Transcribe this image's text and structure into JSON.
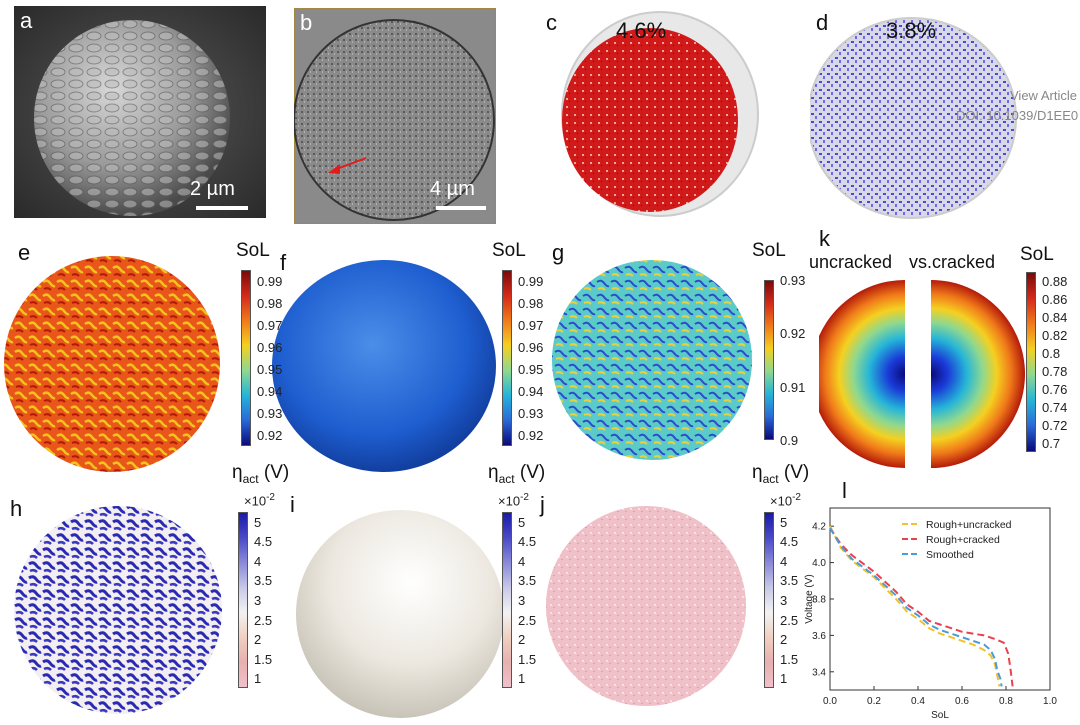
{
  "panels": {
    "a": {
      "label": "a",
      "scale_bar": "2 µm"
    },
    "b": {
      "label": "b",
      "scale_bar": "4 µm"
    },
    "c": {
      "label": "c",
      "percent": "4.6%"
    },
    "d": {
      "label": "d",
      "percent": "3.8%",
      "watermark_1": "View Article",
      "watermark_2": "DOI: 10.1039/D1EE0"
    },
    "e": {
      "label": "e"
    },
    "f": {
      "label": "f"
    },
    "g": {
      "label": "g"
    },
    "h": {
      "label": "h"
    },
    "i": {
      "label": "i"
    },
    "j": {
      "label": "j"
    },
    "k": {
      "label": "k",
      "left_title": "uncracked",
      "right_title": "vs.cracked"
    },
    "l": {
      "label": "l"
    }
  },
  "colorbars": {
    "e": {
      "title": "SoL",
      "ticks": [
        "0.99",
        "0.98",
        "0.97",
        "0.96",
        "0.95",
        "0.94",
        "0.93",
        "0.92"
      ],
      "colors": [
        "#7a0a0a",
        "#d42a1a",
        "#f07a1a",
        "#f5d020",
        "#8fd88f",
        "#25b5d8",
        "#2a6ad8",
        "#0a0a7a"
      ]
    },
    "f": {
      "title": "SoL",
      "ticks": [
        "0.99",
        "0.98",
        "0.97",
        "0.96",
        "0.95",
        "0.94",
        "0.93",
        "0.92"
      ],
      "colors": [
        "#7a0a0a",
        "#d42a1a",
        "#f07a1a",
        "#f5d020",
        "#8fd88f",
        "#25b5d8",
        "#2a6ad8",
        "#0a0a7a"
      ]
    },
    "g": {
      "title": "SoL",
      "ticks": [
        "0.93",
        "0.92",
        "0.91",
        "0.9"
      ],
      "colors": [
        "#7a0a0a",
        "#d42a1a",
        "#f07a1a",
        "#f5d020",
        "#8fd88f",
        "#25b5d8",
        "#2a6ad8",
        "#0a0a7a"
      ]
    },
    "k": {
      "title": "SoL",
      "ticks": [
        "0.88",
        "0.86",
        "0.84",
        "0.82",
        "0.8",
        "0.78",
        "0.76",
        "0.74",
        "0.72",
        "0.7"
      ],
      "colors": [
        "#7a0a0a",
        "#d42a1a",
        "#f07a1a",
        "#f5d020",
        "#8fd88f",
        "#25b5d8",
        "#2a6ad8",
        "#0a0a7a"
      ]
    },
    "h": {
      "title_main": "η",
      "title_sub": "act",
      "title_unit": " (V)",
      "exponent": "×10",
      "exponent_power": "-2",
      "ticks": [
        "5",
        "4.5",
        "4",
        "3.5",
        "3",
        "2.5",
        "2",
        "1.5",
        "1"
      ],
      "colors": [
        "#1a1aa8",
        "#4a4ac8",
        "#8a8ad8",
        "#c8c8e8",
        "#f2f2f2",
        "#f0d0c0",
        "#e8b0b0",
        "#f0c0c8"
      ]
    },
    "i": {
      "title_main": "η",
      "title_sub": "act",
      "title_unit": " (V)",
      "exponent": "×10",
      "exponent_power": "-2",
      "ticks": [
        "5",
        "4.5",
        "4",
        "3.5",
        "3",
        "2.5",
        "2",
        "1.5",
        "1"
      ],
      "colors": [
        "#1a1aa8",
        "#4a4ac8",
        "#8a8ad8",
        "#c8c8e8",
        "#f2f2f2",
        "#f0d0c0",
        "#e8b0b0",
        "#f0c0c8"
      ]
    },
    "j": {
      "title_main": "η",
      "title_sub": "act",
      "title_unit": " (V)",
      "exponent": "×10",
      "exponent_power": "-2",
      "ticks": [
        "5",
        "4.5",
        "4",
        "3.5",
        "3",
        "2.5",
        "2",
        "1.5",
        "1"
      ],
      "colors": [
        "#1a1aa8",
        "#4a4ac8",
        "#8a8ad8",
        "#c8c8e8",
        "#f2f2f2",
        "#f0d0c0",
        "#e8b0b0",
        "#f0c0c8"
      ]
    }
  },
  "chart_data": {
    "type": "line",
    "xlabel": "SoL",
    "ylabel": "Voltage (V)",
    "xlim": [
      0.0,
      1.0
    ],
    "ylim": [
      3.3,
      4.3
    ],
    "xticks": [
      "0.0",
      "0.2",
      "0.4",
      "0.6",
      "0.8",
      "1.0"
    ],
    "yticks": [
      "3.4",
      "3.6",
      "3.8",
      "4.0",
      "4.2"
    ],
    "legend": "top-right",
    "series": [
      {
        "name": "Rough+uncracked",
        "color": "#f2c12e",
        "dash": "dashed",
        "x": [
          0.0,
          0.05,
          0.1,
          0.2,
          0.3,
          0.35,
          0.4,
          0.45,
          0.5,
          0.55,
          0.6,
          0.65,
          0.7,
          0.73,
          0.75,
          0.76,
          0.77
        ],
        "y": [
          4.2,
          4.08,
          4.01,
          3.92,
          3.8,
          3.73,
          3.69,
          3.64,
          3.61,
          3.59,
          3.57,
          3.55,
          3.52,
          3.49,
          3.44,
          3.38,
          3.32
        ]
      },
      {
        "name": "Rough+cracked",
        "color": "#e8424f",
        "dash": "dashed",
        "x": [
          0.0,
          0.05,
          0.1,
          0.2,
          0.3,
          0.35,
          0.4,
          0.45,
          0.5,
          0.55,
          0.6,
          0.65,
          0.7,
          0.75,
          0.79,
          0.81,
          0.82,
          0.83
        ],
        "y": [
          4.19,
          4.1,
          4.04,
          3.95,
          3.84,
          3.77,
          3.73,
          3.68,
          3.66,
          3.64,
          3.62,
          3.61,
          3.6,
          3.58,
          3.56,
          3.5,
          3.42,
          3.32
        ]
      },
      {
        "name": "Smoothed",
        "color": "#4a9bd8",
        "dash": "dashed",
        "x": [
          0.0,
          0.05,
          0.1,
          0.2,
          0.3,
          0.35,
          0.4,
          0.45,
          0.5,
          0.55,
          0.6,
          0.65,
          0.7,
          0.73,
          0.75,
          0.76,
          0.775,
          0.78
        ],
        "y": [
          4.19,
          4.09,
          4.02,
          3.93,
          3.82,
          3.75,
          3.71,
          3.66,
          3.63,
          3.61,
          3.59,
          3.57,
          3.55,
          3.52,
          3.47,
          3.41,
          3.36,
          3.32
        ]
      }
    ]
  }
}
